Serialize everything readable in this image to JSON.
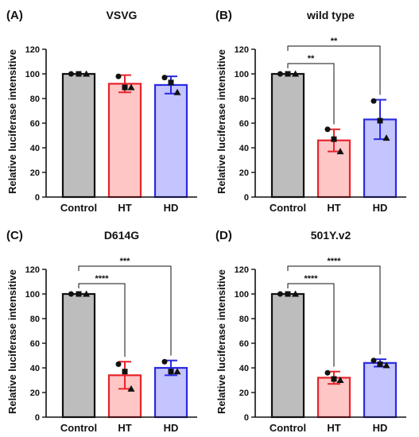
{
  "figure": {
    "colors": {
      "control_fill": "#bdbdbd",
      "control_stroke": "#111111",
      "ht_fill": "#ffc6c6",
      "ht_stroke": "#e8232a",
      "hd_fill": "#c4c4ff",
      "hd_stroke": "#2a2ae0",
      "axis": "#111111",
      "points": "#111111"
    }
  },
  "chart_data": [
    {
      "type": "bar",
      "panel": "(A)",
      "title": "VSVG",
      "ylabel": "Relative luciferase intensitive",
      "xlabel": "",
      "categories": [
        "Control",
        "HT",
        "HD"
      ],
      "values": [
        100,
        92,
        91
      ],
      "error": [
        0,
        7,
        7
      ],
      "points": [
        [
          100,
          100,
          100
        ],
        [
          98,
          89,
          89
        ],
        [
          97,
          93,
          85
        ]
      ],
      "markers": [
        "circle",
        "square",
        "triangle"
      ],
      "ylim": [
        0,
        120
      ],
      "yticks": [
        0,
        20,
        40,
        60,
        80,
        100,
        120
      ],
      "grid": false,
      "significance": []
    },
    {
      "type": "bar",
      "panel": "(B)",
      "title": "wild type",
      "ylabel": "Relative luciferase intensitive",
      "xlabel": "",
      "categories": [
        "Control",
        "HT",
        "HD"
      ],
      "values": [
        100,
        46,
        63
      ],
      "error": [
        0,
        9,
        16
      ],
      "points": [
        [
          100,
          100,
          100
        ],
        [
          55,
          47,
          37
        ],
        [
          78,
          62,
          48
        ]
      ],
      "markers": [
        "circle",
        "square",
        "triangle"
      ],
      "ylim": [
        0,
        120
      ],
      "yticks": [
        0,
        20,
        40,
        60,
        80,
        100,
        120
      ],
      "grid": false,
      "significance": [
        {
          "from": 0,
          "to": 1,
          "label": "**",
          "level": 0
        },
        {
          "from": 0,
          "to": 2,
          "label": "**",
          "level": 1
        }
      ]
    },
    {
      "type": "bar",
      "panel": "(C)",
      "title": "D614G",
      "ylabel": "Relative luciferase intensitive",
      "xlabel": "",
      "categories": [
        "Control",
        "HT",
        "HD"
      ],
      "values": [
        100,
        34,
        40
      ],
      "error": [
        0,
        11,
        6
      ],
      "points": [
        [
          100,
          100,
          100
        ],
        [
          43,
          37,
          23
        ],
        [
          45,
          37,
          37
        ]
      ],
      "markers": [
        "circle",
        "square",
        "triangle"
      ],
      "ylim": [
        0,
        120
      ],
      "yticks": [
        0,
        20,
        40,
        60,
        80,
        100,
        120
      ],
      "grid": false,
      "significance": [
        {
          "from": 0,
          "to": 1,
          "label": "****",
          "level": 0
        },
        {
          "from": 0,
          "to": 2,
          "label": "***",
          "level": 1
        }
      ]
    },
    {
      "type": "bar",
      "panel": "(D)",
      "title": "501Y.v2",
      "ylabel": "Relative luciferase intensitive",
      "xlabel": "",
      "categories": [
        "Control",
        "HT",
        "HD"
      ],
      "values": [
        100,
        32,
        44
      ],
      "error": [
        0,
        5,
        3
      ],
      "points": [
        [
          100,
          100,
          100
        ],
        [
          36,
          31,
          30
        ],
        [
          46,
          43,
          42
        ]
      ],
      "markers": [
        "circle",
        "square",
        "triangle"
      ],
      "ylim": [
        0,
        120
      ],
      "yticks": [
        0,
        20,
        40,
        60,
        80,
        100,
        120
      ],
      "grid": false,
      "significance": [
        {
          "from": 0,
          "to": 1,
          "label": "****",
          "level": 0
        },
        {
          "from": 0,
          "to": 2,
          "label": "****",
          "level": 1
        }
      ]
    }
  ]
}
